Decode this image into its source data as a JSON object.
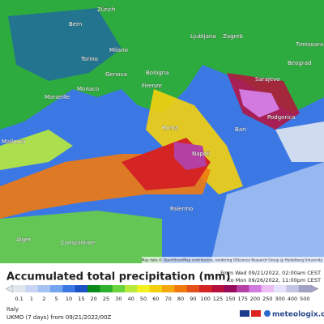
{
  "map": {
    "cities": [
      "Zürich",
      "Bern",
      "Ljubljana",
      "Zagreb",
      "Beograd",
      "Timișoara",
      "Torino",
      "Milano",
      "Genova",
      "Bologna",
      "Firenze",
      "Monaco",
      "Marseille",
      "Roma",
      "Napoli",
      "Bari",
      "Sarajevo",
      "Podgorica",
      "Palermo",
      "Alger",
      "Constantine",
      "Mallorca"
    ],
    "attribution": "Map data © OpenStreetMap contributors, rendering GIScience Research Group @ Heidelberg University"
  },
  "legend": {
    "title": "Accumulated total precipitation (mm)",
    "from": "From Wed 09/21/2022, 02:00am CEST",
    "to": "to Mon 09/26/2022, 11:00pm CEST",
    "levels": [
      {
        "value": 0.1,
        "color": "#dfe6ee"
      },
      {
        "value": 1,
        "color": "#c6d6f2"
      },
      {
        "value": 2,
        "color": "#a6c2f2"
      },
      {
        "value": 5,
        "color": "#74a4f0"
      },
      {
        "value": 10,
        "color": "#3c78e4"
      },
      {
        "value": 15,
        "color": "#1c52c4"
      },
      {
        "value": 20,
        "color": "#0a8a1a"
      },
      {
        "value": 25,
        "color": "#2cb02c"
      },
      {
        "value": 30,
        "color": "#6ad43c"
      },
      {
        "value": 40,
        "color": "#b8ea3c"
      },
      {
        "value": 50,
        "color": "#f2f01e"
      },
      {
        "value": 60,
        "color": "#f4d010"
      },
      {
        "value": 70,
        "color": "#f4a810"
      },
      {
        "value": 80,
        "color": "#f07a10"
      },
      {
        "value": 90,
        "color": "#e4501a"
      },
      {
        "value": 100,
        "color": "#d42424"
      },
      {
        "value": 125,
        "color": "#b8103c"
      },
      {
        "value": 150,
        "color": "#960c5a"
      },
      {
        "value": 175,
        "color": "#b440a4"
      },
      {
        "value": 200,
        "color": "#d27ae0"
      },
      {
        "value": 250,
        "color": "#eebcf4"
      },
      {
        "value": 300,
        "color": "#e4e2fc"
      },
      {
        "value": 400,
        "color": "#c6c4e4"
      },
      {
        "value": 500,
        "color": "#a4a2c4"
      }
    ]
  },
  "footer": {
    "region": "Italy",
    "model": "UKMO (7 days) from 09/21/2022/00Z",
    "brand": "meteologix.com"
  }
}
